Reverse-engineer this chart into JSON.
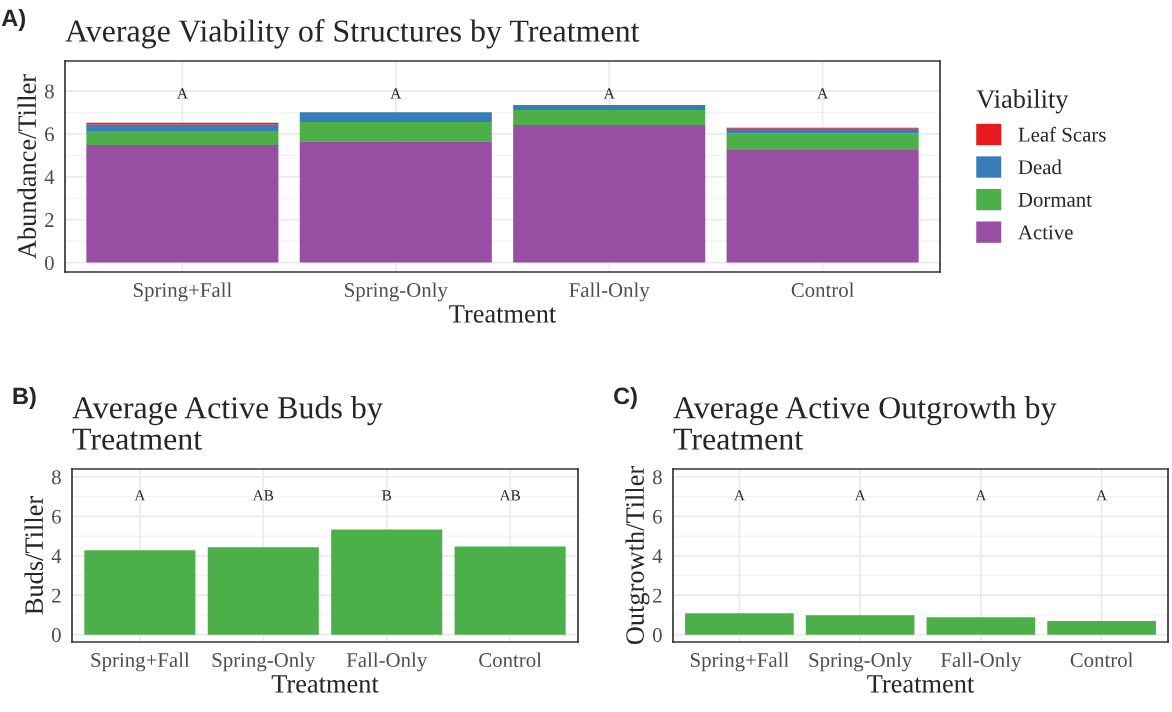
{
  "chart_data": [
    {
      "type": "bar",
      "title": "Average Viability of Structures by Treatment",
      "xlabel": "Treatment",
      "ylabel": "Abundance/Tiller",
      "legend_title": "Viability",
      "categories": [
        "Spring+Fall",
        "Spring-Only",
        "Fall-Only",
        "Control"
      ],
      "stacked": true,
      "series": [
        {
          "name": "Active",
          "color": "#984ea3",
          "values": [
            5.48,
            5.66,
            6.41,
            5.25
          ]
        },
        {
          "name": "Dormant",
          "color": "#4daf4a",
          "values": [
            0.65,
            0.89,
            0.71,
            0.78
          ]
        },
        {
          "name": "Dead",
          "color": "#377eb8",
          "values": [
            0.31,
            0.46,
            0.23,
            0.21
          ]
        },
        {
          "name": "Leaf Scars",
          "color": "#e41a1c",
          "values": [
            0.08,
            0,
            0,
            0.05
          ]
        }
      ],
      "ylim": [
        -0.44,
        9.4
      ],
      "yticks": [
        0,
        2,
        4,
        6,
        8
      ],
      "grid": true,
      "legend": "right",
      "annotations": [
        "A)",
        "A",
        "A",
        "A",
        "A"
      ]
    },
    {
      "type": "bar",
      "title": "Average Active Buds by Treatment",
      "xlabel": "Treatment",
      "ylabel": "Buds/Tiller",
      "categories": [
        "Spring+Fall",
        "Spring-Only",
        "Fall-Only",
        "Control"
      ],
      "series": [
        {
          "color": "#4daf4a",
          "values": [
            4.28,
            4.43,
            5.33,
            4.47
          ]
        }
      ],
      "ylim": [
        -0.37,
        8.4
      ],
      "yticks": [
        0,
        2,
        4,
        6,
        8
      ],
      "grid": true,
      "annotations": [
        "B)",
        "A",
        "AB",
        "B",
        "AB"
      ]
    },
    {
      "type": "bar",
      "title": "Average Active Outgrowth by Treatment",
      "xlabel": "Treatment",
      "ylabel": "Outgrowth/Tiller",
      "categories": [
        "Spring+Fall",
        "Spring-Only",
        "Fall-Only",
        "Control"
      ],
      "series": [
        {
          "color": "#4daf4a",
          "values": [
            1.09,
            0.98,
            0.88,
            0.69
          ]
        }
      ],
      "ylim": [
        -0.37,
        8.4
      ],
      "yticks": [
        0,
        2,
        4,
        6,
        8
      ],
      "grid": true,
      "annotations": [
        "C)",
        "A",
        "A",
        "A",
        "A"
      ]
    }
  ]
}
